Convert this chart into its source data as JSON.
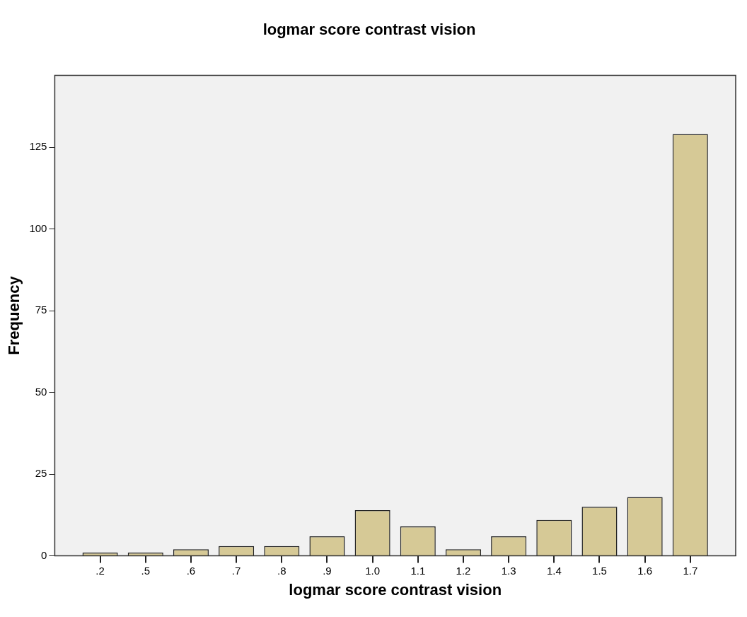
{
  "chart_data": {
    "type": "bar",
    "title": "logmar score contrast vision",
    "xlabel": "logmar score contrast vision",
    "ylabel": "Frequency",
    "categories": [
      ".2",
      ".5",
      ".6",
      ".7",
      ".8",
      ".9",
      "1.0",
      "1.1",
      "1.2",
      "1.3",
      "1.4",
      "1.5",
      "1.6",
      "1.7"
    ],
    "values": [
      1,
      1,
      2,
      3,
      3,
      6,
      14,
      9,
      2,
      6,
      11,
      15,
      18,
      129
    ],
    "color": "#d6c996",
    "ylim": [
      0,
      147
    ],
    "yticks": [
      0,
      25,
      50,
      75,
      100,
      125
    ],
    "grid": false,
    "legend": false
  }
}
